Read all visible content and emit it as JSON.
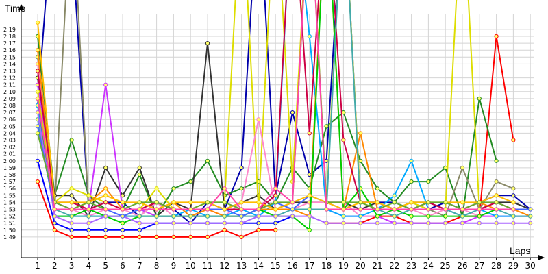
{
  "chart_data": {
    "type": "line",
    "ylabel": "Time",
    "xlabel": "Laps",
    "x": [
      1,
      2,
      3,
      4,
      5,
      6,
      7,
      8,
      9,
      10,
      11,
      12,
      13,
      14,
      15,
      16,
      17,
      18,
      19,
      20,
      21,
      22,
      23,
      24,
      25,
      26,
      27,
      28,
      29,
      30
    ],
    "y_tick_labels": [
      "1:49",
      "1:50",
      "1:51",
      "1:52",
      "1:53",
      "1:54",
      "1:55",
      "1:56",
      "1:57",
      "1:58",
      "1:59",
      "2:00",
      "2:01",
      "2:02",
      "2:03",
      "2:04",
      "2:05",
      "2:06",
      "2:07",
      "2:08",
      "2:09",
      "2:10",
      "2:11",
      "2:12",
      "2:13",
      "2:14",
      "2:15",
      "2:16",
      "2:17",
      "2:18",
      "2:19"
    ],
    "ylim_seconds": [
      108,
      140
    ],
    "grid": true,
    "series": [
      {
        "color": "#ff0000",
        "values": [
          117,
          110,
          109,
          109,
          109,
          109,
          109,
          109,
          109,
          109,
          109,
          110,
          109,
          110,
          110,
          null,
          null,
          null,
          null,
          null,
          null,
          null,
          null,
          null,
          null,
          null,
          null,
          null,
          null,
          null
        ]
      },
      {
        "color": "#ff0000",
        "values": [
          null,
          null,
          null,
          null,
          null,
          null,
          null,
          null,
          null,
          null,
          null,
          null,
          null,
          null,
          null,
          null,
          null,
          111,
          111,
          111,
          112,
          112,
          111,
          111,
          111,
          112,
          112,
          138,
          123,
          null
        ]
      },
      {
        "color": "#0000ff",
        "values": [
          120,
          111,
          110,
          110,
          110,
          110,
          110,
          111,
          111,
          111,
          111,
          111,
          111,
          111,
          111,
          112,
          null,
          null,
          null,
          null,
          null,
          null,
          null,
          null,
          null,
          null,
          null,
          null,
          null,
          null
        ]
      },
      {
        "color": "#0000aa",
        "values": [
          128,
          160,
          153,
          113,
          114,
          114,
          112,
          114,
          113,
          111,
          114,
          113,
          119,
          160,
          115,
          127,
          118,
          120,
          160,
          114,
          114,
          114,
          113,
          113,
          114,
          113,
          114,
          115,
          115,
          113
        ]
      },
      {
        "color": "#228b22",
        "values": [
          138,
          115,
          123,
          115,
          113,
          113,
          118,
          112,
          116,
          117,
          120,
          115,
          116,
          117,
          114,
          119,
          116,
          125,
          127,
          120,
          116,
          114,
          117,
          117,
          119,
          112,
          129,
          120,
          null,
          null
        ]
      },
      {
        "color": "#888866",
        "values": [
          135,
          113,
          160,
          113,
          112,
          112,
          113,
          112,
          112,
          112,
          113,
          113,
          113,
          113,
          113,
          113,
          113,
          113,
          113,
          113,
          113,
          113,
          114,
          113,
          112,
          119,
          113,
          117,
          116,
          null
        ]
      },
      {
        "color": "#333333",
        "values": [
          132,
          115,
          115,
          112,
          119,
          115,
          119,
          112,
          114,
          113,
          137,
          113,
          114,
          115,
          113,
          114,
          114,
          114,
          114,
          113,
          114,
          113,
          114,
          114,
          113,
          113,
          113,
          114,
          114,
          113
        ]
      },
      {
        "color": "#cc33ff",
        "values": [
          131,
          114,
          113,
          113,
          131,
          113,
          113,
          112,
          112,
          112,
          112,
          112,
          112,
          113,
          113,
          113,
          113,
          113,
          112,
          112,
          112,
          111,
          111,
          111,
          111,
          111,
          112,
          112,
          112,
          112
        ]
      },
      {
        "color": "#dddd00",
        "values": [
          130,
          114,
          116,
          115,
          114,
          113,
          113,
          116,
          113,
          113,
          114,
          114,
          160,
          113,
          160,
          117,
          160,
          114,
          160,
          114,
          113,
          113,
          114,
          113,
          113,
          160,
          113,
          113,
          113,
          null
        ]
      },
      {
        "color": "#ff88cc",
        "values": [
          134,
          113,
          113,
          112,
          113,
          113,
          112,
          114,
          112,
          112,
          113,
          112,
          114,
          126,
          113,
          113,
          114,
          114,
          114,
          112,
          112,
          113,
          113,
          112,
          113,
          113,
          112,
          113,
          113,
          113
        ]
      },
      {
        "color": "#00aaff",
        "values": [
          128,
          112,
          112,
          112,
          112,
          112,
          112,
          112,
          112,
          113,
          112,
          112,
          113,
          112,
          114,
          160,
          138,
          113,
          112,
          112,
          113,
          115,
          120,
          113,
          113,
          112,
          113,
          112,
          112,
          112
        ]
      },
      {
        "color": "#ff8800",
        "values": [
          136,
          113,
          113,
          114,
          116,
          113,
          113,
          113,
          114,
          112,
          113,
          112,
          112,
          113,
          113,
          113,
          112,
          160,
          113,
          124,
          113,
          113,
          113,
          113,
          113,
          113,
          114,
          113,
          113,
          112
        ]
      },
      {
        "color": "#00cc00",
        "values": [
          129,
          112,
          112,
          113,
          112,
          111,
          112,
          112,
          112,
          112,
          112,
          112,
          112,
          113,
          112,
          112,
          110,
          160,
          113,
          116,
          112,
          113,
          112,
          112,
          112,
          112,
          112,
          113,
          113,
          null
        ]
      },
      {
        "color": "#cc0044",
        "values": [
          133,
          114,
          114,
          113,
          114,
          113,
          113,
          114,
          113,
          113,
          113,
          113,
          113,
          113,
          115,
          160,
          124,
          160,
          123,
          114,
          114,
          113,
          113,
          114,
          113,
          113,
          113,
          114,
          113,
          null
        ]
      },
      {
        "color": "#44aaaa",
        "values": [
          126,
          113,
          112,
          112,
          112,
          112,
          112,
          112,
          112,
          112,
          112,
          112,
          112,
          112,
          112,
          113,
          113,
          113,
          160,
          113,
          113,
          112,
          113,
          113,
          113,
          112,
          113,
          113,
          112,
          112
        ]
      },
      {
        "color": "#aa66ff",
        "values": [
          127,
          112,
          111,
          111,
          112,
          112,
          111,
          111,
          111,
          111,
          111,
          111,
          111,
          112,
          112,
          112,
          112,
          111,
          111,
          111,
          111,
          111,
          111,
          111,
          111,
          111,
          111,
          111,
          111,
          111
        ]
      },
      {
        "color": "#4466ff",
        "values": [
          125,
          113,
          113,
          113,
          113,
          112,
          113,
          113,
          113,
          113,
          113,
          113,
          112,
          113,
          114,
          113,
          115,
          114,
          113,
          113,
          113,
          113,
          113,
          113,
          113,
          113,
          113,
          113,
          113,
          113
        ]
      },
      {
        "color": "#ffbb00",
        "values": [
          140,
          114,
          114,
          114,
          115,
          114,
          114,
          113,
          114,
          114,
          114,
          113,
          114,
          114,
          113,
          114,
          115,
          114,
          113,
          114,
          114,
          113,
          114,
          114,
          114,
          114,
          114,
          115,
          114,
          null
        ]
      },
      {
        "color": "#66aa33",
        "values": [
          124,
          114,
          113,
          114,
          113,
          113,
          114,
          114,
          113,
          113,
          114,
          114,
          113,
          113,
          114,
          114,
          160,
          114,
          114,
          114,
          113,
          114,
          113,
          114,
          114,
          113,
          114,
          114,
          113,
          null
        ]
      },
      {
        "color": "#ff44aa",
        "values": [
          129,
          113,
          113,
          113,
          113,
          113,
          113,
          113,
          113,
          113,
          113,
          116,
          113,
          113,
          116,
          114,
          160,
          113,
          113,
          113,
          113,
          113,
          113,
          113,
          113,
          113,
          113,
          113,
          113,
          null
        ]
      }
    ]
  }
}
